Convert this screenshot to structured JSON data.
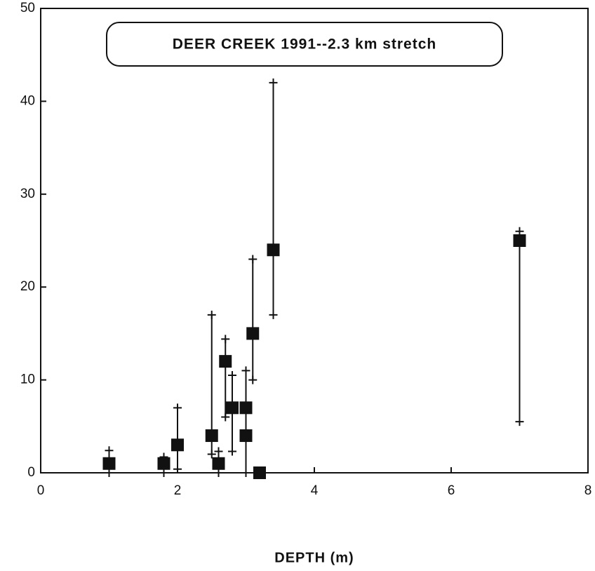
{
  "chart_data": {
    "type": "scatter",
    "title": "DEER CREEK 1991--2.3 km stretch",
    "x_label": "DEPTH (m)",
    "x": [
      1.0,
      1.8,
      2.0,
      2.5,
      2.6,
      2.7,
      2.8,
      3.0,
      3.0,
      3.1,
      3.2,
      3.4,
      7.0
    ],
    "values": [
      1,
      1,
      3,
      4,
      1,
      12,
      7,
      7,
      4,
      15,
      0,
      24,
      25
    ],
    "low": [
      0,
      0,
      0.4,
      2,
      0,
      6,
      2.3,
      0,
      null,
      10,
      null,
      17,
      5.5
    ],
    "high": [
      2.4,
      1.7,
      7,
      17,
      2.3,
      14.4,
      10.5,
      11,
      null,
      23,
      null,
      42,
      26
    ],
    "color": "#111111",
    "xlim": [
      0,
      8
    ],
    "xticks": [
      0,
      2,
      4,
      6,
      8
    ],
    "ylim": [
      0,
      50
    ],
    "yticks": [
      0,
      10,
      20,
      30,
      40,
      50
    ],
    "grid": false
  }
}
